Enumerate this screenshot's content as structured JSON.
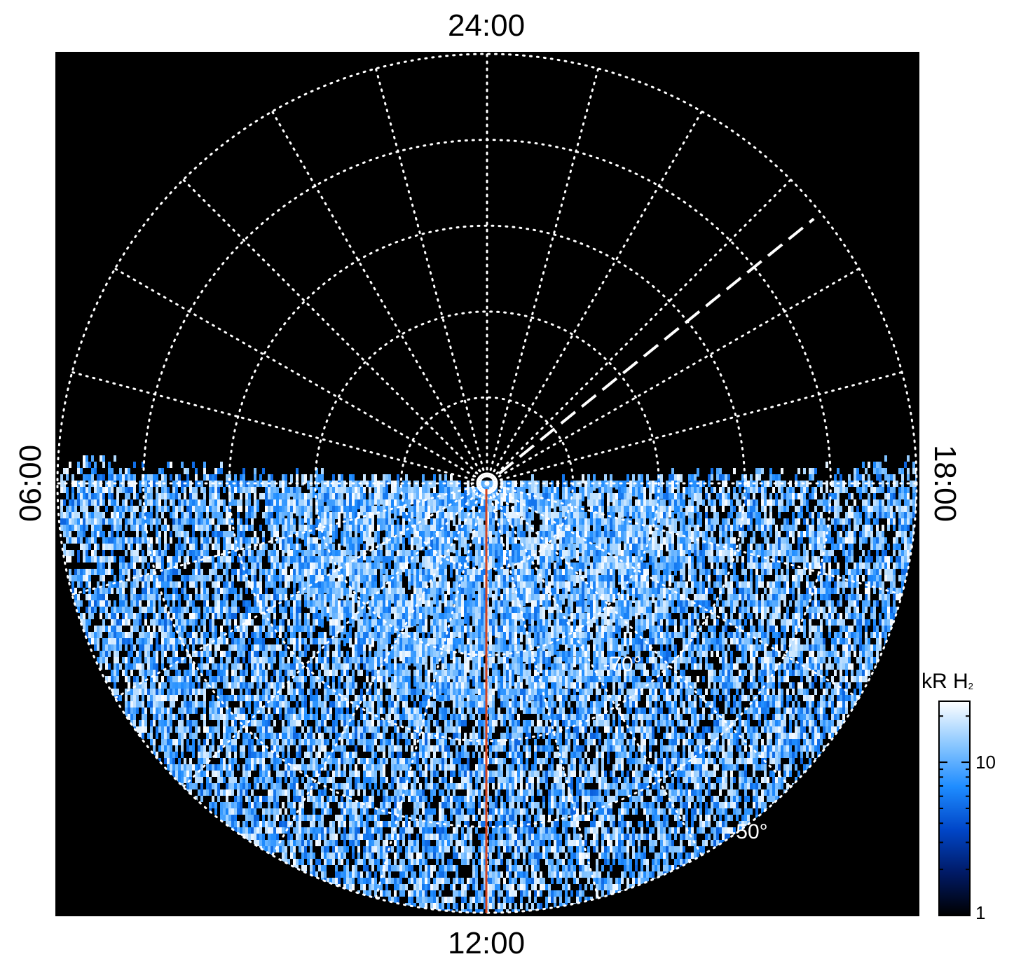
{
  "chart_data": {
    "type": "heatmap",
    "projection": "polar, local time vs latitude",
    "local_time_labels": {
      "top": "24:00",
      "bottom": "12:00",
      "left": "06:00",
      "right": "18:00"
    },
    "latitude_labels": [
      "-70°",
      "-50°"
    ],
    "latitude_rings": [
      -80,
      -70,
      -60,
      -50,
      -40
    ],
    "longitude_spokes": 24,
    "grid": "dotted white",
    "background": "#000000",
    "colorbar": {
      "unit": "kR H",
      "unit_subscript": "2",
      "scale": "log",
      "range": [
        1,
        25
      ],
      "ticks": [
        {
          "value": 10,
          "label": "10"
        },
        {
          "value": 1,
          "label": "1"
        }
      ],
      "colors": [
        "#000000",
        "#001a66",
        "#0046c8",
        "#1e8cff",
        "#8cc8ff",
        "#ffffff"
      ]
    },
    "reference_line_color": "#d2421e",
    "dashed_line_color": "#ffffff"
  }
}
